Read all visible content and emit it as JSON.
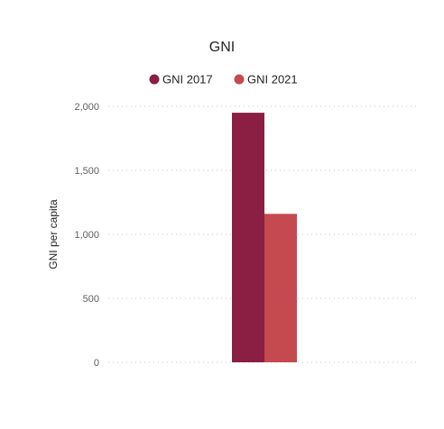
{
  "chart_data": {
    "type": "bar",
    "title": "GNI",
    "xlabel": "",
    "ylabel": "GNI per capita",
    "categories": [
      ""
    ],
    "series": [
      {
        "name": "GNI 2017",
        "color": "#8b1e43",
        "values": [
          1950
        ]
      },
      {
        "name": "GNI 2021",
        "color": "#c44a4f",
        "values": [
          1160
        ]
      }
    ],
    "ylim": [
      0,
      2000
    ],
    "yticks": [
      0,
      500,
      1000,
      1500,
      2000
    ],
    "ytick_labels": [
      "0",
      "500",
      "1,000",
      "1,500",
      "2,000"
    ],
    "grid": true,
    "legend": "top-center"
  }
}
